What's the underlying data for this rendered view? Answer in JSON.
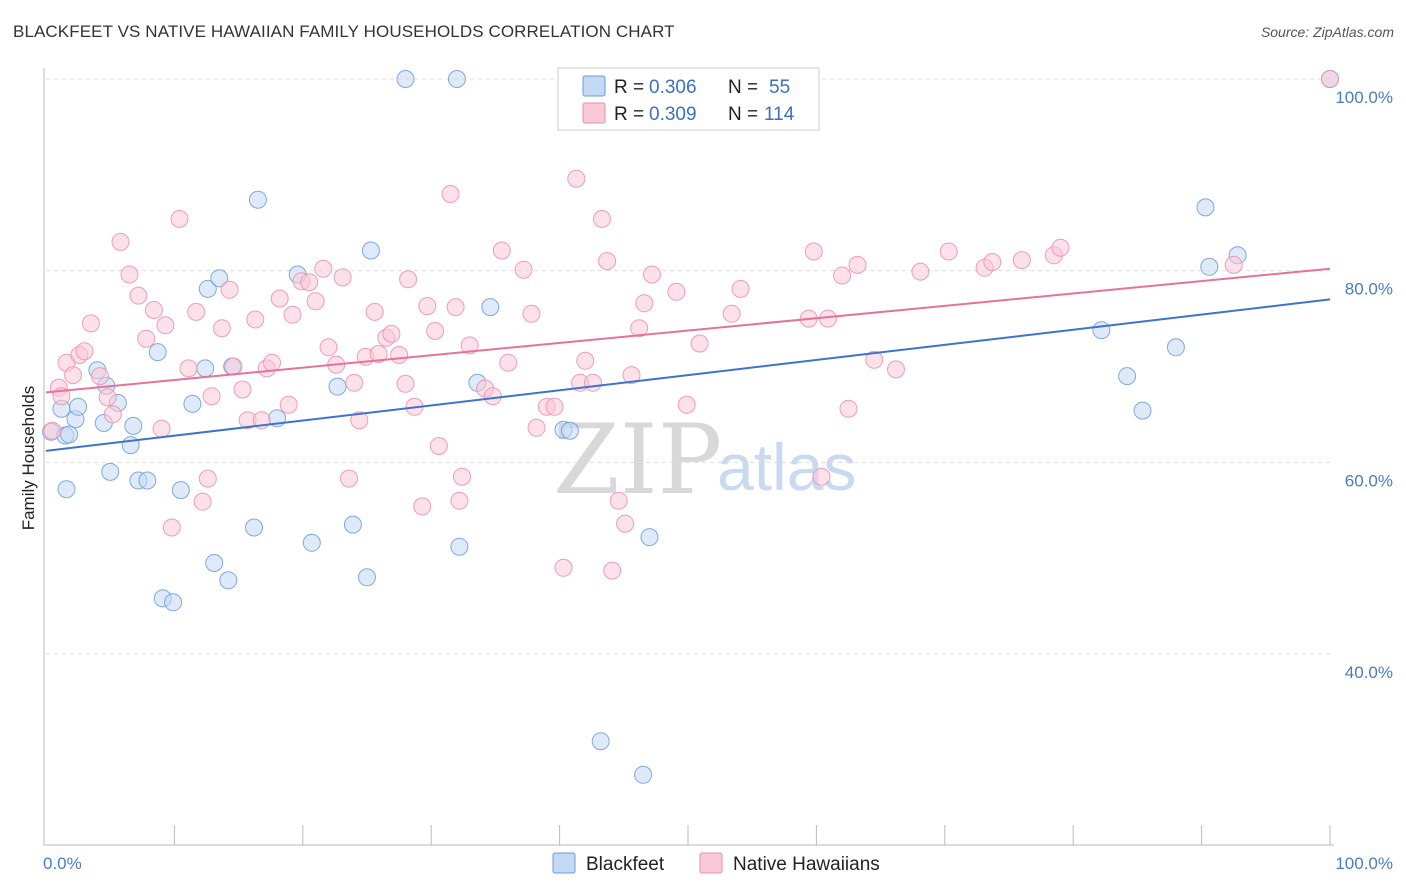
{
  "title": "BLACKFEET VS NATIVE HAWAIIAN FAMILY HOUSEHOLDS CORRELATION CHART",
  "source": "Source: ZipAtlas.com",
  "watermark": {
    "zip": "ZIP",
    "atlas": "atlas"
  },
  "legend_box": {
    "rows": [
      {
        "r_label": "R =",
        "r_value": "0.306",
        "n_label": "N =",
        "n_value": "55",
        "color": "#a9c8f0"
      },
      {
        "r_label": "R =",
        "r_value": "0.309",
        "n_label": "N =",
        "n_value": "114",
        "color": "#f7b8cb"
      }
    ]
  },
  "chart_data": {
    "type": "scatter",
    "title": "BLACKFEET VS NATIVE HAWAIIAN FAMILY HOUSEHOLDS CORRELATION CHART",
    "xlabel": "",
    "ylabel": "Family Households",
    "xlim": [
      0,
      100
    ],
    "ylim": [
      20,
      101
    ],
    "x_tick_labels": [
      "0.0%",
      "100.0%"
    ],
    "y_ticks": [
      {
        "value": 40,
        "label": "40.0%"
      },
      {
        "value": 60,
        "label": "60.0%"
      },
      {
        "value": 80,
        "label": "80.0%"
      },
      {
        "value": 100,
        "label": "100.0%"
      }
    ],
    "grid": "horizontal dashed",
    "legend_position": "bottom",
    "series": [
      {
        "name": "Blackfeet",
        "color": "#6a9be0",
        "fill": "#c4d9f4",
        "r": 0.306,
        "n": 55,
        "trend": {
          "x": [
            0,
            100
          ],
          "y": [
            61.2,
            77.0
          ]
        },
        "points": [
          [
            0.4,
            63.2
          ],
          [
            1.2,
            65.6
          ],
          [
            1.5,
            62.8
          ],
          [
            2.3,
            64.5
          ],
          [
            2.5,
            65.8
          ],
          [
            1.8,
            62.9
          ],
          [
            1.6,
            57.2
          ],
          [
            4.0,
            69.6
          ],
          [
            4.7,
            68.0
          ],
          [
            5.6,
            66.2
          ],
          [
            4.5,
            64.1
          ],
          [
            5.0,
            59.0
          ],
          [
            6.8,
            63.8
          ],
          [
            7.2,
            58.1
          ],
          [
            7.9,
            58.1
          ],
          [
            6.6,
            61.8
          ],
          [
            8.7,
            71.5
          ],
          [
            9.1,
            45.8
          ],
          [
            9.9,
            45.4
          ],
          [
            10.5,
            57.1
          ],
          [
            11.4,
            66.1
          ],
          [
            12.4,
            69.8
          ],
          [
            12.6,
            78.1
          ],
          [
            13.1,
            49.5
          ],
          [
            13.5,
            79.2
          ],
          [
            14.2,
            47.7
          ],
          [
            14.5,
            70.0
          ],
          [
            16.2,
            53.2
          ],
          [
            16.5,
            87.4
          ],
          [
            18.0,
            64.6
          ],
          [
            19.6,
            79.6
          ],
          [
            20.7,
            51.6
          ],
          [
            22.7,
            67.9
          ],
          [
            23.9,
            53.5
          ],
          [
            25.0,
            48.0
          ],
          [
            25.3,
            82.1
          ],
          [
            28.0,
            100.0
          ],
          [
            32.0,
            100.0
          ],
          [
            32.2,
            51.2
          ],
          [
            33.6,
            68.3
          ],
          [
            34.6,
            76.2
          ],
          [
            40.3,
            63.4
          ],
          [
            40.8,
            63.3
          ],
          [
            43.2,
            30.9
          ],
          [
            46.5,
            27.4
          ],
          [
            47.0,
            52.2
          ],
          [
            82.2,
            73.8
          ],
          [
            84.2,
            69.0
          ],
          [
            85.4,
            65.4
          ],
          [
            88.0,
            72.0
          ],
          [
            90.3,
            86.6
          ],
          [
            90.6,
            80.4
          ],
          [
            92.8,
            81.6
          ],
          [
            100.0,
            100.0
          ]
        ]
      },
      {
        "name": "Native Hawaiians",
        "color": "#ea8fab",
        "fill": "#f9c9d7",
        "r": 0.309,
        "n": 114,
        "trend": {
          "x": [
            0,
            100
          ],
          "y": [
            67.3,
            80.2
          ]
        },
        "points": [
          [
            0.5,
            63.3
          ],
          [
            1.0,
            67.8
          ],
          [
            1.2,
            66.9
          ],
          [
            1.6,
            70.4
          ],
          [
            2.1,
            69.1
          ],
          [
            2.6,
            71.2
          ],
          [
            3.0,
            71.6
          ],
          [
            3.5,
            74.5
          ],
          [
            4.2,
            69.0
          ],
          [
            4.8,
            66.8
          ],
          [
            5.2,
            65.0
          ],
          [
            5.8,
            83.0
          ],
          [
            6.5,
            79.6
          ],
          [
            7.2,
            77.4
          ],
          [
            7.8,
            72.9
          ],
          [
            8.4,
            75.9
          ],
          [
            9.0,
            63.5
          ],
          [
            9.3,
            74.3
          ],
          [
            9.8,
            53.2
          ],
          [
            10.4,
            85.4
          ],
          [
            11.1,
            69.8
          ],
          [
            11.7,
            75.7
          ],
          [
            12.2,
            55.9
          ],
          [
            12.6,
            58.3
          ],
          [
            12.9,
            66.9
          ],
          [
            13.7,
            74.0
          ],
          [
            14.3,
            78.0
          ],
          [
            14.6,
            70.0
          ],
          [
            15.3,
            67.6
          ],
          [
            15.7,
            64.4
          ],
          [
            16.3,
            74.9
          ],
          [
            16.8,
            64.4
          ],
          [
            17.2,
            69.8
          ],
          [
            17.6,
            70.4
          ],
          [
            18.2,
            77.1
          ],
          [
            18.9,
            66.0
          ],
          [
            19.2,
            75.4
          ],
          [
            19.9,
            78.9
          ],
          [
            20.5,
            78.8
          ],
          [
            21.0,
            76.8
          ],
          [
            21.6,
            80.2
          ],
          [
            22.0,
            72.0
          ],
          [
            22.6,
            70.2
          ],
          [
            23.1,
            79.3
          ],
          [
            23.6,
            58.3
          ],
          [
            24.0,
            68.3
          ],
          [
            24.4,
            64.4
          ],
          [
            24.9,
            71.0
          ],
          [
            25.6,
            75.7
          ],
          [
            25.9,
            71.3
          ],
          [
            26.5,
            73.0
          ],
          [
            26.9,
            73.4
          ],
          [
            27.5,
            71.2
          ],
          [
            28.0,
            68.2
          ],
          [
            28.2,
            79.1
          ],
          [
            28.7,
            65.8
          ],
          [
            29.3,
            55.4
          ],
          [
            29.7,
            76.3
          ],
          [
            30.3,
            73.7
          ],
          [
            30.6,
            61.7
          ],
          [
            31.5,
            88.0
          ],
          [
            31.9,
            76.2
          ],
          [
            32.4,
            58.5
          ],
          [
            32.2,
            56.0
          ],
          [
            33.0,
            72.2
          ],
          [
            34.2,
            67.7
          ],
          [
            34.8,
            66.9
          ],
          [
            35.5,
            82.1
          ],
          [
            36.0,
            70.4
          ],
          [
            37.2,
            80.1
          ],
          [
            37.8,
            75.5
          ],
          [
            38.2,
            63.6
          ],
          [
            39.0,
            65.8
          ],
          [
            39.6,
            65.8
          ],
          [
            40.3,
            49.0
          ],
          [
            41.3,
            89.6
          ],
          [
            41.6,
            68.3
          ],
          [
            42.0,
            70.6
          ],
          [
            42.6,
            68.3
          ],
          [
            43.3,
            85.4
          ],
          [
            43.7,
            81.0
          ],
          [
            44.1,
            48.7
          ],
          [
            44.6,
            56.0
          ],
          [
            45.1,
            53.6
          ],
          [
            45.6,
            69.1
          ],
          [
            46.2,
            74.0
          ],
          [
            46.6,
            76.6
          ],
          [
            47.2,
            79.6
          ],
          [
            49.1,
            77.8
          ],
          [
            49.9,
            66.0
          ],
          [
            50.9,
            72.4
          ],
          [
            53.4,
            75.5
          ],
          [
            54.1,
            78.1
          ],
          [
            59.4,
            75.0
          ],
          [
            59.8,
            82.0
          ],
          [
            60.4,
            58.5
          ],
          [
            60.9,
            75.0
          ],
          [
            62.0,
            79.5
          ],
          [
            62.5,
            65.6
          ],
          [
            63.2,
            80.6
          ],
          [
            64.5,
            70.7
          ],
          [
            66.2,
            69.7
          ],
          [
            68.1,
            79.9
          ],
          [
            70.3,
            82.0
          ],
          [
            73.1,
            80.3
          ],
          [
            73.7,
            80.9
          ],
          [
            76.0,
            81.1
          ],
          [
            78.5,
            81.6
          ],
          [
            79.0,
            82.4
          ],
          [
            92.5,
            80.6
          ],
          [
            100.0,
            100.0
          ]
        ]
      }
    ]
  }
}
